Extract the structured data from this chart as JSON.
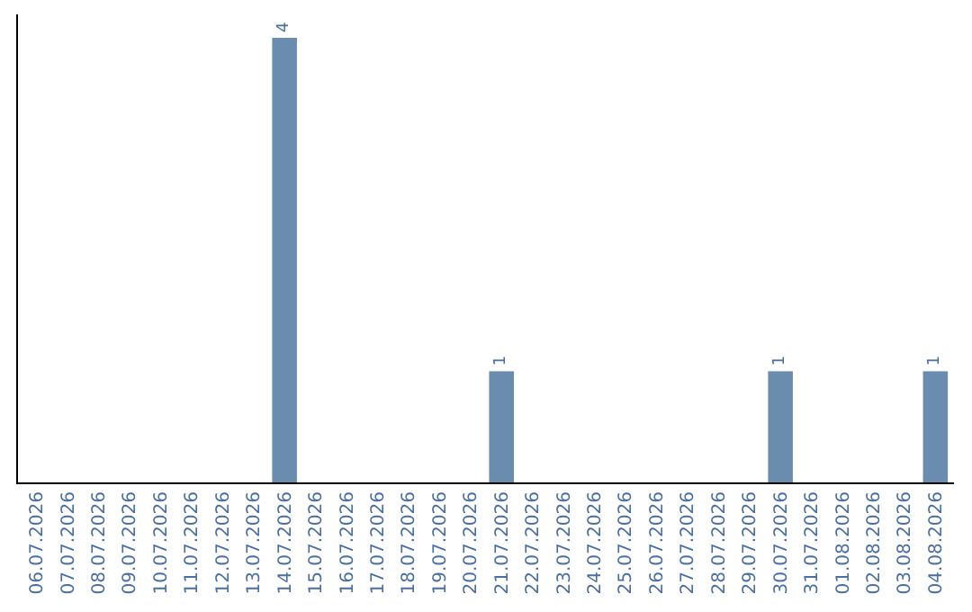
{
  "chart_data": {
    "type": "bar",
    "categories": [
      "06.07.2026",
      "07.07.2026",
      "08.07.2026",
      "09.07.2026",
      "10.07.2026",
      "11.07.2026",
      "12.07.2026",
      "13.07.2026",
      "14.07.2026",
      "15.07.2026",
      "16.07.2026",
      "17.07.2026",
      "18.07.2026",
      "19.07.2026",
      "20.07.2026",
      "21.07.2026",
      "22.07.2026",
      "23.07.2026",
      "24.07.2026",
      "25.07.2026",
      "26.07.2026",
      "27.07.2026",
      "28.07.2026",
      "29.07.2026",
      "30.07.2026",
      "31.07.2026",
      "01.08.2026",
      "02.08.2026",
      "03.08.2026",
      "04.08.2026"
    ],
    "values": [
      0,
      0,
      0,
      0,
      0,
      0,
      0,
      0,
      4,
      0,
      0,
      0,
      0,
      0,
      0,
      1,
      0,
      0,
      0,
      0,
      0,
      0,
      0,
      0,
      1,
      0,
      0,
      0,
      0,
      1
    ],
    "value_labels": [
      null,
      null,
      null,
      null,
      null,
      null,
      null,
      null,
      "4",
      null,
      null,
      null,
      null,
      null,
      null,
      "1",
      null,
      null,
      null,
      null,
      null,
      null,
      null,
      null,
      "1",
      null,
      null,
      null,
      null,
      "1"
    ],
    "color": "#6a8caf",
    "tick_labels": "x",
    "grid": false,
    "legend": false
  }
}
